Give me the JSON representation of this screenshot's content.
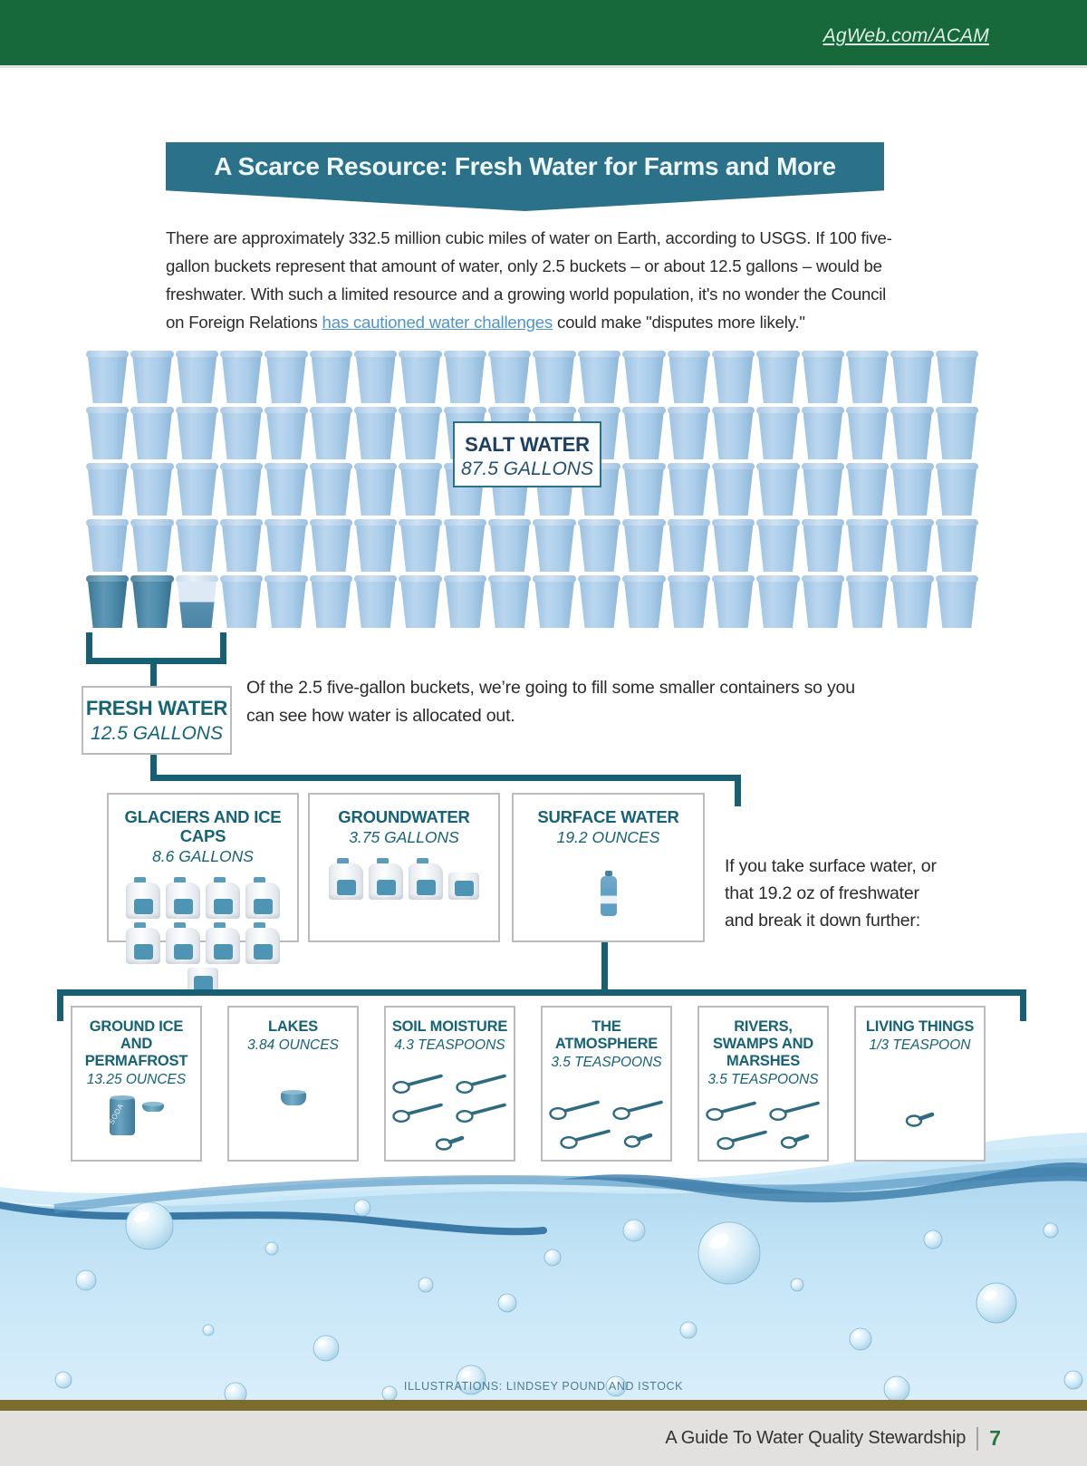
{
  "header": {
    "link": "AgWeb.com/ACAM"
  },
  "banner": {
    "title": "A Scarce Resource: Fresh Water for Farms and More"
  },
  "intro": {
    "text_before": "There are approximately 332.5 million cubic miles of water on Earth, according to USGS. If 100 five-gallon buckets represent that amount of water, only 2.5 buckets – or about 12.5 gallons – would be freshwater. With such a limited resource and a growing world population, it's no wonder the Council on Foreign Relations ",
    "link_text": "has cautioned water challenges",
    "text_after": " could make \"disputes more likely.\""
  },
  "bucket_grid": {
    "total_buckets": 100,
    "columns": 20,
    "rows": 5,
    "bucket_size_gallons": 5,
    "fresh_full_buckets": 2,
    "fresh_partial_buckets": 1
  },
  "salt_water_label": {
    "title": "SALT WATER",
    "amount": "87.5 GALLONS"
  },
  "fresh_water_label": {
    "title": "FRESH WATER",
    "amount": "12.5 GALLONS"
  },
  "allocation_note": "Of the 2.5 five-gallon buckets, we’re going to fill some smaller containers so you can see how water is allocated out.",
  "side_note": "If you take surface water, or that 19.2 oz of freshwater and break it down further:",
  "level1_boxes": [
    {
      "title": "GLACIERS AND ICE CAPS",
      "amount": "8.6 GALLONS",
      "icon": "jug",
      "full": 8,
      "partial": 1
    },
    {
      "title": "GROUNDWATER",
      "amount": "3.75 GALLONS",
      "icon": "jug",
      "full": 3,
      "partial": 1
    },
    {
      "title": "SURFACE WATER",
      "amount": "19.2 OUNCES",
      "icon": "bottle",
      "full": 1,
      "partial": 0
    }
  ],
  "level2_boxes": [
    {
      "title": "GROUND ICE AND PERMAFROST",
      "amount": "13.25 OUNCES",
      "icon": "can-cup",
      "full": 1,
      "partial": 1
    },
    {
      "title": "LAKES",
      "amount": "3.84 OUNCES",
      "icon": "cup",
      "full": 1,
      "partial": 0
    },
    {
      "title": "SOIL MOISTURE",
      "amount": "4.3 TEASPOONS",
      "icon": "spoon",
      "full": 4,
      "partial": 1
    },
    {
      "title": "THE ATMOSPHERE",
      "amount": "3.5 TEASPOONS",
      "icon": "spoon",
      "full": 3,
      "partial": 1
    },
    {
      "title": "RIVERS, SWAMPS AND MARSHES",
      "amount": "3.5 TEASPOONS",
      "icon": "spoon",
      "full": 3,
      "partial": 1
    },
    {
      "title": "LIVING THINGS",
      "amount": "1/3 TEASPOON",
      "icon": "spoon",
      "full": 0,
      "partial": 1
    }
  ],
  "icons": {
    "can_label": "SODA"
  },
  "credits": "ILLUSTRATIONS: LINDSEY POUND AND ISTOCK",
  "footer": {
    "text": "A Guide To Water Quality Stewardship",
    "page_number": "7"
  },
  "colors": {
    "top_bar_green": "#17693b",
    "banner_teal": "#2a7189",
    "connector_teal": "#175f72",
    "teal_text": "#166276",
    "navy_text": "#1d3f60",
    "link_blue": "#4e94c9",
    "bucket_light": "#aacdea",
    "bucket_dark": "#4f8cab",
    "footer_olive": "#7c6c2d",
    "footer_gray": "#e2e1df",
    "page_number_green": "#237a3d"
  }
}
